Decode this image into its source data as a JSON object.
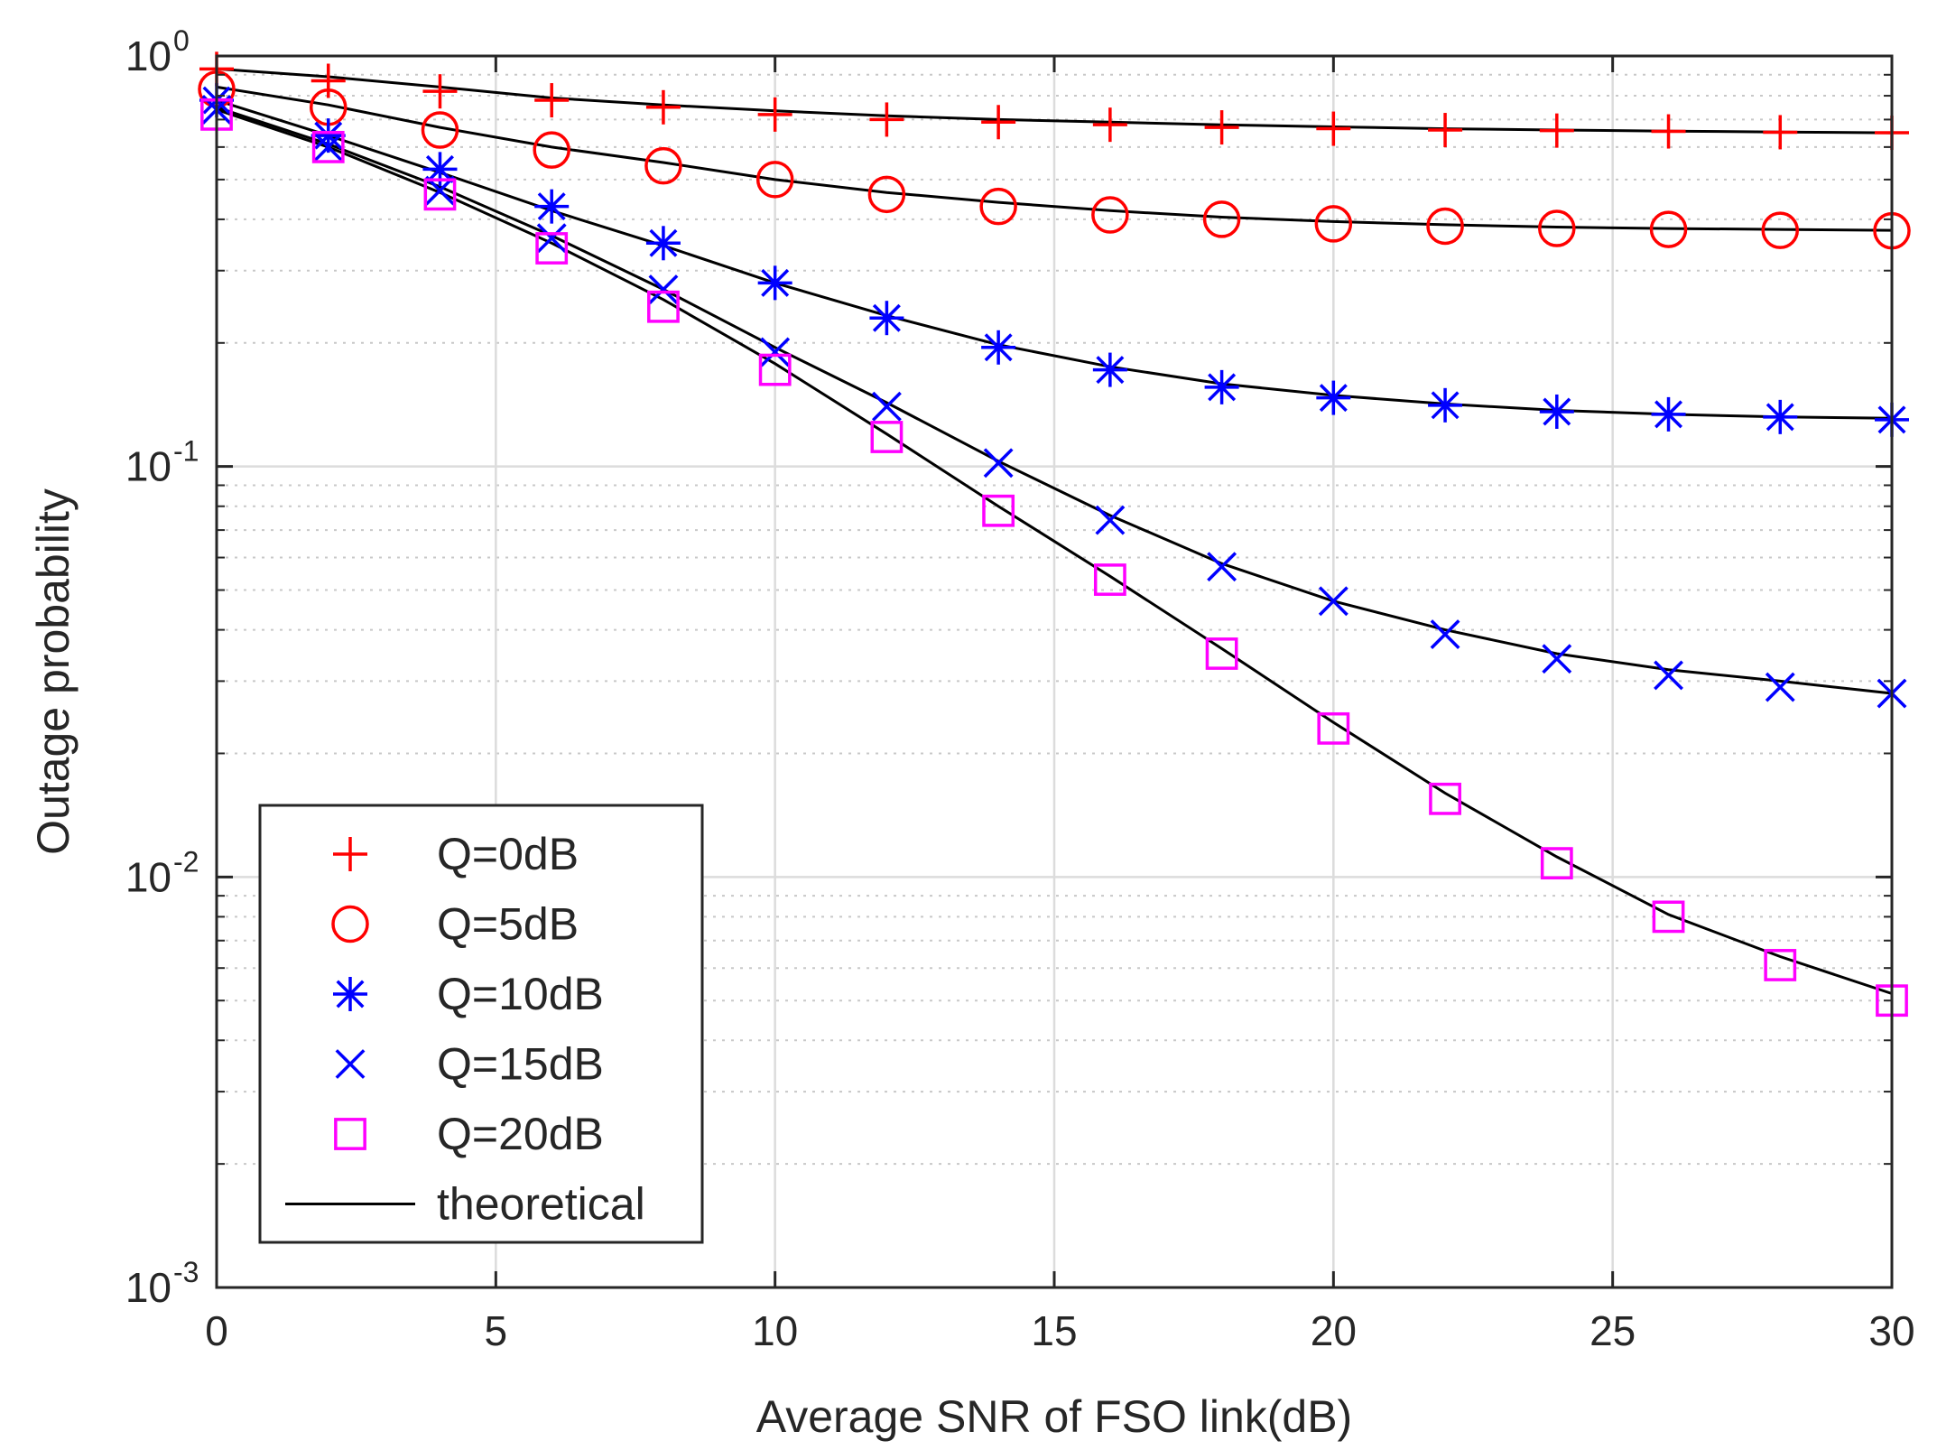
{
  "colors": {
    "red": "#ff0000",
    "blue": "#0000ff",
    "magenta": "#ff00ff",
    "black": "#000000",
    "grid_major": "#dcdcdc",
    "grid_minor": "#c8c8c8",
    "axis": "#262626"
  },
  "chart_data": {
    "type": "line",
    "title": "",
    "xlabel": "Average SNR of FSO link(dB)",
    "ylabel": "Outage probability",
    "xlim": [
      0,
      30
    ],
    "ylim": [
      0.001,
      1
    ],
    "yscale": "log",
    "grid": true,
    "minor_grid": true,
    "xticks": [
      0,
      5,
      10,
      15,
      20,
      25,
      30
    ],
    "xtick_labels": [
      "0",
      "5",
      "10",
      "15",
      "20",
      "25",
      "30"
    ],
    "yticks": [
      {
        "value": 1,
        "base": "10",
        "exp": "0"
      },
      {
        "value": 0.1,
        "base": "10",
        "exp": "-1"
      },
      {
        "value": 0.01,
        "base": "10",
        "exp": "-2"
      },
      {
        "value": 0.001,
        "base": "10",
        "exp": "-3"
      }
    ],
    "legend_position": "bottom-left",
    "x": [
      0,
      2,
      4,
      6,
      8,
      10,
      12,
      14,
      16,
      18,
      20,
      22,
      24,
      26,
      28,
      30
    ],
    "series": [
      {
        "name": "Q=0dB",
        "marker": "plus",
        "color": "#ff0000",
        "sim": [
          0.93,
          0.87,
          0.82,
          0.78,
          0.75,
          0.72,
          0.7,
          0.69,
          0.68,
          0.67,
          0.665,
          0.66,
          0.658,
          0.655,
          0.652,
          0.65
        ],
        "theory": [
          0.93,
          0.89,
          0.84,
          0.79,
          0.76,
          0.735,
          0.715,
          0.7,
          0.69,
          0.68,
          0.672,
          0.665,
          0.66,
          0.656,
          0.653,
          0.65
        ]
      },
      {
        "name": "Q=5dB",
        "marker": "circle",
        "color": "#ff0000",
        "sim": [
          0.83,
          0.75,
          0.66,
          0.59,
          0.54,
          0.5,
          0.46,
          0.43,
          0.41,
          0.4,
          0.39,
          0.385,
          0.38,
          0.378,
          0.376,
          0.375
        ],
        "theory": [
          0.84,
          0.76,
          0.67,
          0.6,
          0.55,
          0.5,
          0.465,
          0.44,
          0.42,
          0.405,
          0.395,
          0.388,
          0.383,
          0.38,
          0.378,
          0.376
        ]
      },
      {
        "name": "Q=10dB",
        "marker": "asterisk",
        "color": "#0000ff",
        "sim": [
          0.78,
          0.64,
          0.53,
          0.43,
          0.35,
          0.28,
          0.23,
          0.195,
          0.172,
          0.156,
          0.147,
          0.141,
          0.136,
          0.134,
          0.132,
          0.13
        ],
        "theory": [
          0.78,
          0.64,
          0.52,
          0.42,
          0.345,
          0.28,
          0.233,
          0.198,
          0.175,
          0.159,
          0.149,
          0.142,
          0.137,
          0.134,
          0.132,
          0.131
        ]
      },
      {
        "name": "Q=15dB",
        "marker": "x",
        "color": "#0000ff",
        "sim": [
          0.74,
          0.6,
          0.47,
          0.36,
          0.27,
          0.19,
          0.14,
          0.102,
          0.074,
          0.057,
          0.047,
          0.039,
          0.034,
          0.031,
          0.029,
          0.028
        ],
        "theory": [
          0.75,
          0.61,
          0.48,
          0.365,
          0.27,
          0.195,
          0.143,
          0.103,
          0.076,
          0.058,
          0.047,
          0.04,
          0.035,
          0.032,
          0.03,
          0.028
        ]
      },
      {
        "name": "Q=20dB",
        "marker": "square",
        "color": "#ff00ff",
        "sim": [
          0.72,
          0.6,
          0.46,
          0.34,
          0.245,
          0.172,
          0.118,
          0.078,
          0.053,
          0.035,
          0.023,
          0.0155,
          0.0108,
          0.008,
          0.0061,
          0.005
        ],
        "theory": [
          0.74,
          0.6,
          0.465,
          0.35,
          0.255,
          0.178,
          0.12,
          0.08,
          0.054,
          0.036,
          0.0238,
          0.016,
          0.0112,
          0.0081,
          0.0064,
          0.0052
        ]
      }
    ],
    "theory_label": "theoretical"
  }
}
